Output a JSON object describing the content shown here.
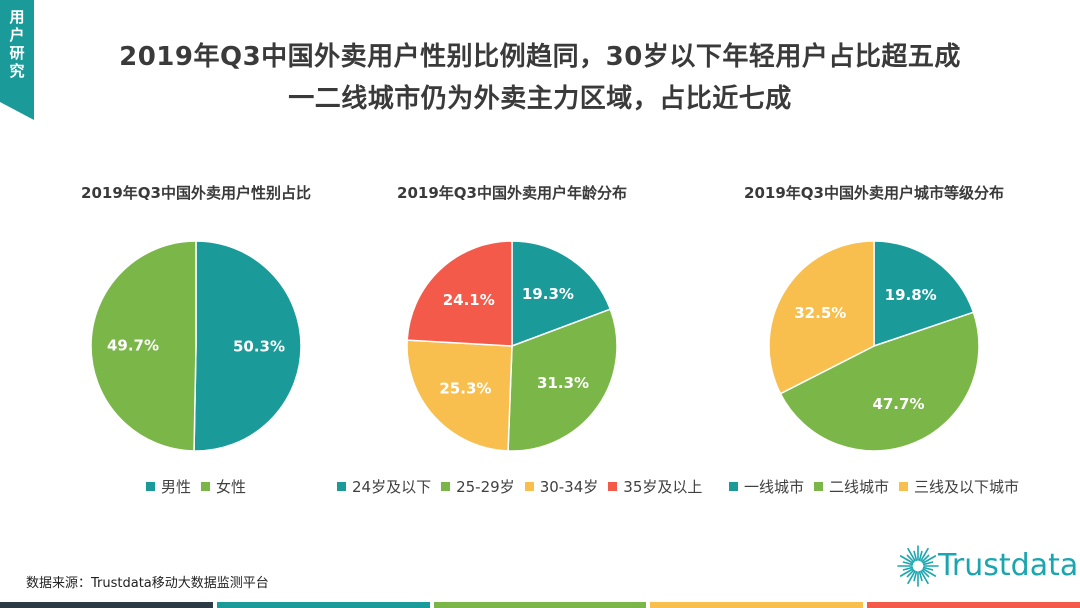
{
  "corner_tab": {
    "label": "用户研究",
    "color": "#1a9a98"
  },
  "title": {
    "line1": "2019年Q3中国外卖用户性别比例趋同，30岁以下年轻用户占比超五成",
    "line2": "一二线城市仍为外卖主力区域，占比近七成"
  },
  "chart_data": [
    {
      "type": "pie",
      "title": "2019年Q3中国外卖用户性别占比",
      "categories": [
        "男性",
        "女性"
      ],
      "values": [
        50.3,
        49.7
      ],
      "labels": [
        "50.3%",
        "49.7%"
      ],
      "colors": [
        "#1a9a98",
        "#7ab648"
      ],
      "legend": "bottom"
    },
    {
      "type": "pie",
      "title": "2019年Q3中国外卖用户年龄分布",
      "categories": [
        "24岁及以下",
        "25-29岁",
        "30-34岁",
        "35岁及以上"
      ],
      "values": [
        19.3,
        31.3,
        25.3,
        24.1
      ],
      "labels": [
        "19.3%",
        "31.3%",
        "25.3%",
        "24.1%"
      ],
      "colors": [
        "#1a9a98",
        "#7ab648",
        "#f8bf4e",
        "#f35a4a"
      ],
      "legend": "bottom"
    },
    {
      "type": "pie",
      "title": "2019年Q3中国外卖用户城市等级分布",
      "categories": [
        "一线城市",
        "二线城市",
        "三线及以下城市"
      ],
      "values": [
        19.8,
        47.7,
        32.5
      ],
      "labels": [
        "19.8%",
        "47.7%",
        "32.5%"
      ],
      "colors": [
        "#1a9a98",
        "#7ab648",
        "#f8bf4e"
      ],
      "legend": "bottom"
    }
  ],
  "footer": {
    "source": "数据来源：Trustdata移动大数据监测平台",
    "logo_text": "Trustdata",
    "logo_color": "#1aa6b0",
    "bar_colors": [
      "#2d3a45",
      "#1a9a98",
      "#7ab648",
      "#f8bf4e",
      "#f35a4a"
    ]
  }
}
